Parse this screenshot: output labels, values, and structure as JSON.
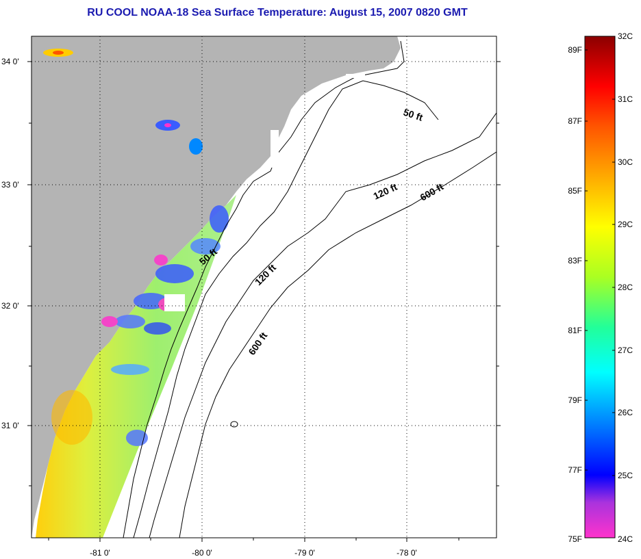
{
  "title": "RU COOL  NOAA-18  Sea Surface Temperature:  August 15, 2007 0820 GMT",
  "map": {
    "lat_labels": [
      "34 0'",
      "33 0'",
      "32 0'",
      "31 0'"
    ],
    "lon_labels": [
      "-81 0'",
      "-80 0'",
      "-79 0'",
      "-78 0'"
    ],
    "contour_labels": [
      "50 ft",
      "120 ft",
      "600 ft",
      "50 ft",
      "120 ft",
      "600 ft"
    ],
    "land_color": "#b4b4b4",
    "ocean_color": "#ffffff"
  },
  "colorbar": {
    "fahrenheit_labels": [
      "89F",
      "87F",
      "85F",
      "83F",
      "81F",
      "79F",
      "77F",
      "75F"
    ],
    "celsius_labels": [
      "32C",
      "31C",
      "30C",
      "29C",
      "28C",
      "27C",
      "26C",
      "25C",
      "24C"
    ],
    "range_c": [
      24,
      32
    ],
    "colors": [
      "#ff33cc",
      "#8833dd",
      "#0000ff",
      "#0088ff",
      "#00ffff",
      "#00ff88",
      "#aaff00",
      "#ffff00",
      "#ffaa00",
      "#ff5500",
      "#ff0000",
      "#8b0000"
    ]
  }
}
